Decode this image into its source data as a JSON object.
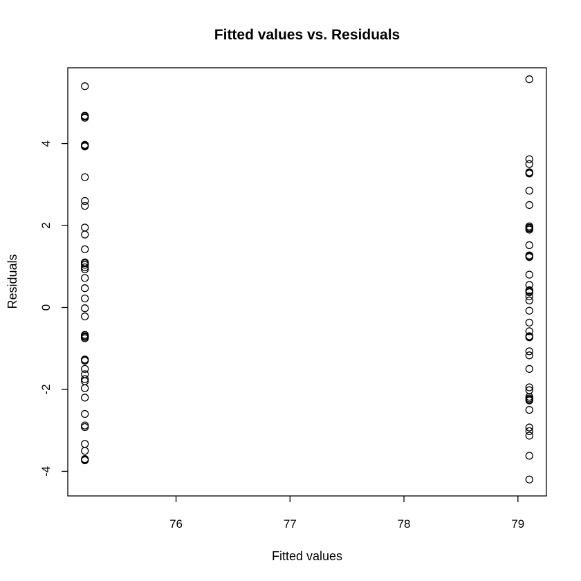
{
  "chart_data": {
    "type": "scatter",
    "title": "Fitted values vs. Residuals",
    "xlabel": "Fitted values",
    "ylabel": "Residuals",
    "xlim": [
      75.05,
      79.25
    ],
    "ylim": [
      -4.6,
      5.85
    ],
    "xticks": [
      76,
      77,
      78,
      79
    ],
    "yticks": [
      -4,
      -2,
      0,
      2,
      4
    ],
    "grid": false,
    "legend": "none",
    "series": [
      {
        "x": [
          75.2,
          75.2,
          75.2,
          75.2,
          75.2,
          75.2,
          75.2,
          75.2,
          75.2,
          75.2,
          75.2,
          75.2,
          75.2,
          75.2,
          75.2,
          75.2,
          75.2,
          75.2,
          75.2,
          75.2,
          75.2,
          75.2,
          75.2,
          75.2,
          75.2,
          75.2,
          75.2,
          75.2,
          75.2,
          75.2,
          75.2,
          75.2,
          75.2,
          75.2,
          75.2,
          75.2,
          75.2,
          75.2,
          75.2,
          75.2,
          75.2,
          75.2,
          75.2,
          75.2
        ],
        "y": [
          5.4,
          4.68,
          4.63,
          3.97,
          3.93,
          3.18,
          2.6,
          2.48,
          1.95,
          1.78,
          1.42,
          1.08,
          1.04,
          0.98,
          0.93,
          0.72,
          0.47,
          0.22,
          -0.02,
          -0.22,
          -0.67,
          -0.72,
          -0.75,
          -1.27,
          -1.3,
          -1.5,
          -1.63,
          -1.75,
          -1.8,
          -1.97,
          -2.2,
          -2.6,
          -2.88,
          -2.92,
          -3.33,
          -3.5,
          -3.7,
          -3.73,
          -3.72,
          -0.7,
          1.1,
          4.66,
          3.95,
          -1.28
        ],
        "marker": "open-circle"
      },
      {
        "x": [
          79.1,
          79.1,
          79.1,
          79.1,
          79.1,
          79.1,
          79.1,
          79.1,
          79.1,
          79.1,
          79.1,
          79.1,
          79.1,
          79.1,
          79.1,
          79.1,
          79.1,
          79.1,
          79.1,
          79.1,
          79.1,
          79.1,
          79.1,
          79.1,
          79.1,
          79.1,
          79.1,
          79.1,
          79.1,
          79.1,
          79.1,
          79.1,
          79.1,
          79.1,
          79.1,
          79.1,
          79.1,
          79.1,
          79.1,
          79.1,
          79.1,
          79.1,
          79.1,
          79.1
        ],
        "y": [
          5.57,
          3.62,
          3.5,
          3.3,
          3.27,
          2.85,
          2.5,
          1.98,
          1.95,
          1.9,
          1.52,
          1.27,
          1.23,
          0.8,
          0.55,
          0.42,
          0.37,
          0.27,
          0.17,
          -0.08,
          -0.37,
          -0.58,
          -0.72,
          -0.73,
          -1.07,
          -1.17,
          -1.5,
          -1.95,
          -2.02,
          -2.18,
          -2.22,
          -2.27,
          -2.5,
          -2.93,
          -3.02,
          -3.13,
          -3.62,
          -4.2,
          -2.25,
          1.25,
          3.28,
          1.93,
          -0.7,
          0.4
        ],
        "marker": "open-circle"
      }
    ]
  }
}
